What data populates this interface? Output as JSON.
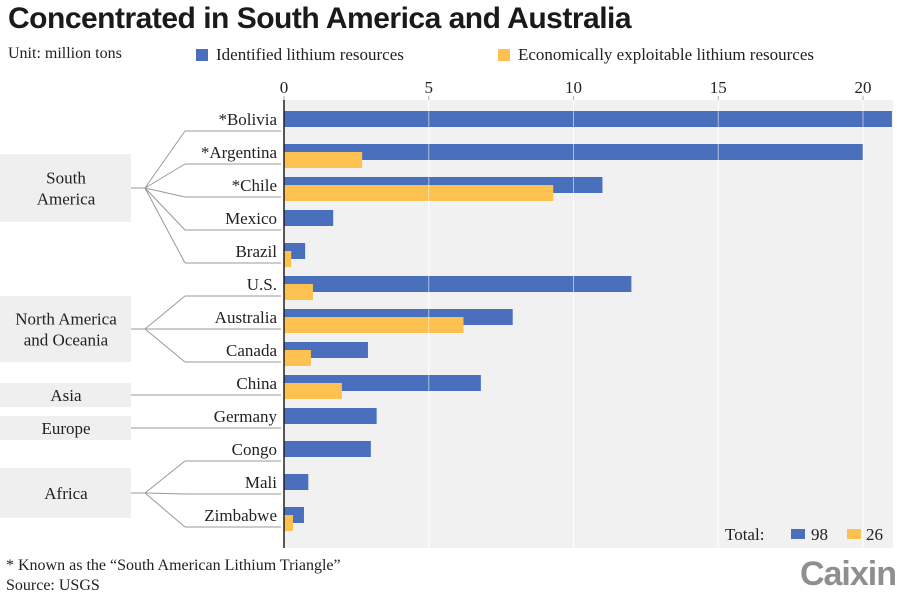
{
  "header": {
    "title": "Concentrated in South America and Australia",
    "unit": "Unit: million tons"
  },
  "colors": {
    "identified": "#4a6fbd",
    "exploitable": "#fcc14f",
    "plot_bg": "#f1f1f1",
    "region_bg": "#efefef"
  },
  "footer": {
    "note": "* Known as the “South American Lithium Triangle”",
    "source": "Source: USGS",
    "logo": "Caixin"
  },
  "chart_data": {
    "type": "bar",
    "orientation": "horizontal",
    "title": "Concentrated in South America and Australia",
    "xlabel": "Unit: million tons",
    "xlim": [
      0,
      21
    ],
    "xticks": [
      0,
      5,
      10,
      15,
      20
    ],
    "grid": true,
    "legend_position": "top",
    "categories": [
      "*Bolivia",
      "*Argentina",
      "*Chile",
      "Mexico",
      "Brazil",
      "U.S.",
      "Australia",
      "Canada",
      "China",
      "Germany",
      "Congo",
      "Mali",
      "Zimbabwe"
    ],
    "series": [
      {
        "name": "Identified lithium resources",
        "values": [
          21,
          20,
          11,
          1.7,
          0.73,
          12,
          7.9,
          2.9,
          6.8,
          3.2,
          3.0,
          0.84,
          0.69
        ]
      },
      {
        "name": "Economically exploitable lithium resources",
        "values": [
          null,
          2.7,
          9.3,
          null,
          0.25,
          1.0,
          6.2,
          0.93,
          2.0,
          null,
          null,
          null,
          0.31
        ]
      }
    ],
    "groups": [
      {
        "label": "South America",
        "members": [
          "*Bolivia",
          "*Argentina",
          "*Chile",
          "Mexico",
          "Brazil"
        ]
      },
      {
        "label": "North America and Oceania",
        "members": [
          "U.S.",
          "Australia",
          "Canada"
        ]
      },
      {
        "label": "Asia",
        "members": [
          "China"
        ]
      },
      {
        "label": "Europe",
        "members": [
          "Germany"
        ]
      },
      {
        "label": "Africa",
        "members": [
          "Congo",
          "Mali",
          "Zimbabwe"
        ]
      }
    ],
    "totals": {
      "label": "Total:",
      "identified": 98,
      "exploitable": 26
    }
  }
}
